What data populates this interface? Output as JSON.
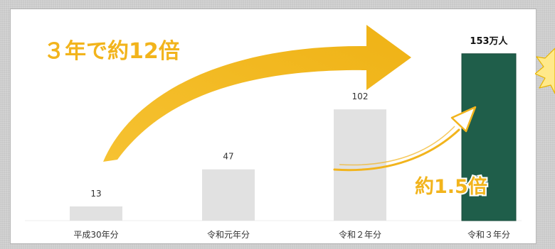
{
  "chart_data": {
    "type": "bar",
    "categories": [
      "平成30年分",
      "令和元年分",
      "令和２年分",
      "令和３年分"
    ],
    "values": [
      13,
      47,
      102,
      153
    ],
    "value_labels": [
      "13",
      "47",
      "102",
      "153万人"
    ],
    "highlight_index": 3,
    "colors": {
      "bar": "#e1e1e1",
      "highlight": "#1f5e4a",
      "accent": "#f2b41c"
    },
    "annotations": [
      {
        "text": "３年で約12倍"
      },
      {
        "text": "約1.5倍"
      }
    ],
    "ylim": [
      0,
      160
    ],
    "grid": false,
    "legend": "none"
  }
}
